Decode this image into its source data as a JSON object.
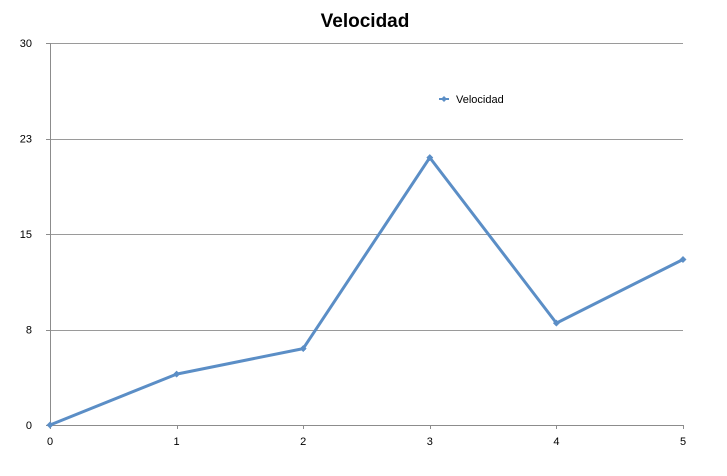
{
  "chart_data": {
    "type": "line",
    "title": "Velocidad",
    "xlabel": "",
    "ylabel": "",
    "x": [
      0,
      1,
      2,
      3,
      4,
      5
    ],
    "x_tick_labels": [
      "0",
      "1",
      "2",
      "3",
      "4",
      "5"
    ],
    "xlim": [
      0,
      5
    ],
    "y_tick_values": [
      0,
      7.5,
      15,
      22.5,
      30
    ],
    "y_tick_labels": [
      "0",
      "8",
      "15",
      "23",
      "30"
    ],
    "ylim": [
      0,
      30
    ],
    "grid": true,
    "legend_position": "top-right",
    "series": [
      {
        "name": "Velocidad",
        "color": "#5b8ec6",
        "marker": "diamond",
        "values": [
          0,
          4,
          6,
          21,
          8,
          13
        ]
      }
    ]
  }
}
